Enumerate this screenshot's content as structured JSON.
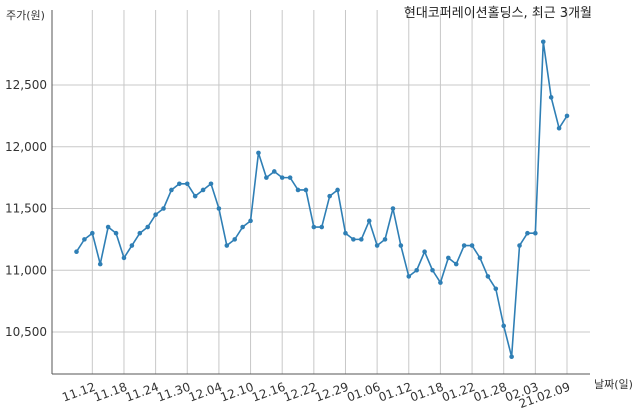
{
  "chart_data": {
    "type": "line",
    "title": "현대코퍼레이션홀딩스, 최근 3개월",
    "ylabel": "주가(원)",
    "xlabel": "날짜(일)",
    "ylim": [
      10200,
      12950
    ],
    "yticks": [
      10500,
      11000,
      11500,
      12000,
      12500
    ],
    "ytick_labels": [
      "10,500",
      "11,000",
      "11,500",
      "12,000",
      "12,500"
    ],
    "xtick_labels": [
      "11.12",
      "11.18",
      "11.24",
      "11.30",
      "12.04",
      "12.10",
      "12.16",
      "12.22",
      "12.29",
      "01.06",
      "01.12",
      "01.18",
      "01.22",
      "01.28",
      "02.03",
      "21.02.09"
    ],
    "xtick_indices": [
      2,
      6,
      10,
      14,
      18,
      22,
      26,
      30,
      34,
      38,
      42,
      46,
      50,
      54,
      58,
      62
    ],
    "grid": true,
    "color": "#2f7fb5",
    "series": [
      {
        "values": [
          11150,
          11250,
          11300,
          11050,
          11350,
          11300,
          11100,
          11200,
          11300,
          11350,
          11450,
          11500,
          11650,
          11700,
          11700,
          11600,
          11650,
          11700,
          11500,
          11200,
          11250,
          11350,
          11400,
          11950,
          11750,
          11800,
          11750,
          11750,
          11650,
          11650,
          11350,
          11350,
          11600,
          11650,
          11300,
          11250,
          11250,
          11400,
          11200,
          11250,
          11500,
          11200,
          10950,
          11000,
          11150,
          11000,
          10900,
          11100,
          11050,
          11200,
          11200,
          11100,
          10950,
          10850,
          10550,
          10300,
          11200,
          11300,
          11300,
          12850,
          12400,
          12150,
          12250
        ]
      }
    ]
  }
}
